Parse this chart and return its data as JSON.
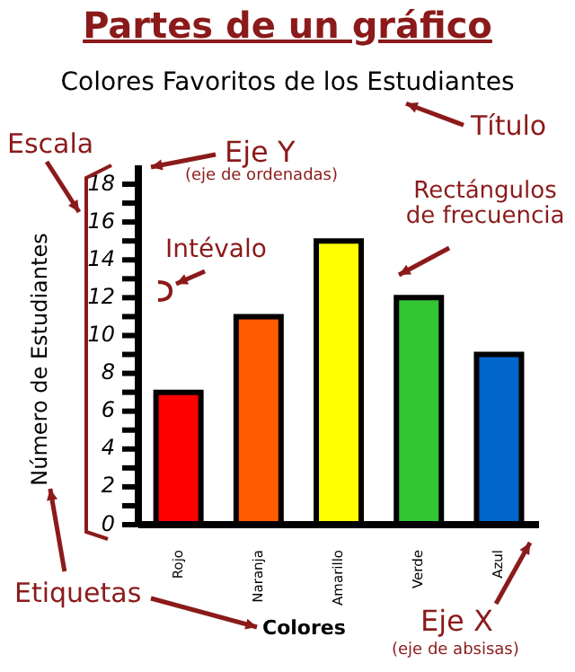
{
  "chart_data": {
    "type": "bar",
    "title": "Partes de un gráfico",
    "subtitle": "Colores Favoritos de los Estudiantes",
    "xlabel": "Colores",
    "ylabel": "Número de Estudiantes",
    "categories": [
      "Rojo",
      "Naranja",
      "Amarillo",
      "Verde",
      "Azul"
    ],
    "values": [
      7,
      11,
      15,
      12,
      9
    ],
    "colors": [
      "#ff0000",
      "#ff5a00",
      "#ffff00",
      "#33c533",
      "#0066cc"
    ],
    "ylim": [
      0,
      19
    ],
    "yticks": [
      0,
      {
        "value": 1,
        "label": null
      },
      2,
      {
        "value": 3,
        "label": null
      },
      4,
      {
        "value": 5,
        "label": null
      },
      6,
      {
        "value": 7,
        "label": null
      },
      8,
      {
        "value": 9,
        "label": null
      },
      10,
      {
        "value": 11,
        "label": null
      },
      12,
      {
        "value": 13,
        "label": null
      },
      14,
      {
        "value": 15,
        "label": null
      },
      16,
      {
        "value": 17,
        "label": null
      },
      18
    ],
    "grid": false,
    "legend": false,
    "annotations": [
      "Título",
      "Escala",
      "Eje Y",
      "(eje de ordenadas)",
      "Intévalo",
      "Rectángulos de frecuencia",
      "Etiquetas",
      "Eje X",
      "(eje de absisas)"
    ]
  }
}
